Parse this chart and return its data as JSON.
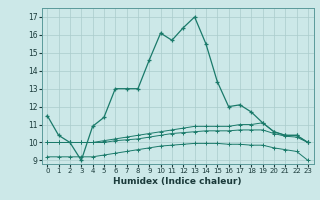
{
  "title": "",
  "xlabel": "Humidex (Indice chaleur)",
  "ylabel": "",
  "xlim": [
    -0.5,
    23.5
  ],
  "ylim": [
    8.8,
    17.5
  ],
  "yticks": [
    9,
    10,
    11,
    12,
    13,
    14,
    15,
    16,
    17
  ],
  "xticks": [
    0,
    1,
    2,
    3,
    4,
    5,
    6,
    7,
    8,
    9,
    10,
    11,
    12,
    13,
    14,
    15,
    16,
    17,
    18,
    19,
    20,
    21,
    22,
    23
  ],
  "bg_color": "#cce8e8",
  "line_color": "#1a7a6a",
  "grid_color": "#aacccc",
  "line1_x": [
    0,
    1,
    2,
    3,
    4,
    5,
    6,
    7,
    8,
    9,
    10,
    11,
    12,
    13,
    14,
    15,
    16,
    17,
    18,
    19,
    20,
    21,
    22,
    23
  ],
  "line1_y": [
    11.5,
    10.4,
    10.0,
    9.0,
    10.9,
    11.4,
    13.0,
    13.0,
    13.0,
    14.6,
    16.1,
    15.7,
    16.4,
    17.0,
    15.5,
    13.4,
    12.0,
    12.1,
    11.7,
    11.1,
    10.6,
    10.4,
    10.4,
    10.0
  ],
  "line2_x": [
    0,
    1,
    2,
    3,
    4,
    5,
    6,
    7,
    8,
    9,
    10,
    11,
    12,
    13,
    14,
    15,
    16,
    17,
    18,
    19,
    20,
    21,
    22,
    23
  ],
  "line2_y": [
    10.0,
    10.0,
    10.0,
    10.0,
    10.0,
    10.1,
    10.2,
    10.3,
    10.4,
    10.5,
    10.6,
    10.7,
    10.8,
    10.9,
    10.9,
    10.9,
    10.9,
    11.0,
    11.0,
    11.1,
    10.6,
    10.4,
    10.4,
    10.0
  ],
  "line3_x": [
    0,
    1,
    2,
    3,
    4,
    5,
    6,
    7,
    8,
    9,
    10,
    11,
    12,
    13,
    14,
    15,
    16,
    17,
    18,
    19,
    20,
    21,
    22,
    23
  ],
  "line3_y": [
    10.0,
    10.0,
    10.0,
    10.0,
    10.0,
    10.0,
    10.1,
    10.15,
    10.2,
    10.3,
    10.4,
    10.5,
    10.55,
    10.6,
    10.65,
    10.65,
    10.65,
    10.7,
    10.7,
    10.7,
    10.5,
    10.35,
    10.3,
    10.0
  ],
  "line4_x": [
    0,
    1,
    2,
    3,
    4,
    5,
    6,
    7,
    8,
    9,
    10,
    11,
    12,
    13,
    14,
    15,
    16,
    17,
    18,
    19,
    20,
    21,
    22,
    23
  ],
  "line4_y": [
    9.2,
    9.2,
    9.2,
    9.2,
    9.2,
    9.3,
    9.4,
    9.5,
    9.6,
    9.7,
    9.8,
    9.85,
    9.9,
    9.95,
    9.95,
    9.95,
    9.9,
    9.9,
    9.85,
    9.85,
    9.7,
    9.6,
    9.5,
    9.0
  ]
}
